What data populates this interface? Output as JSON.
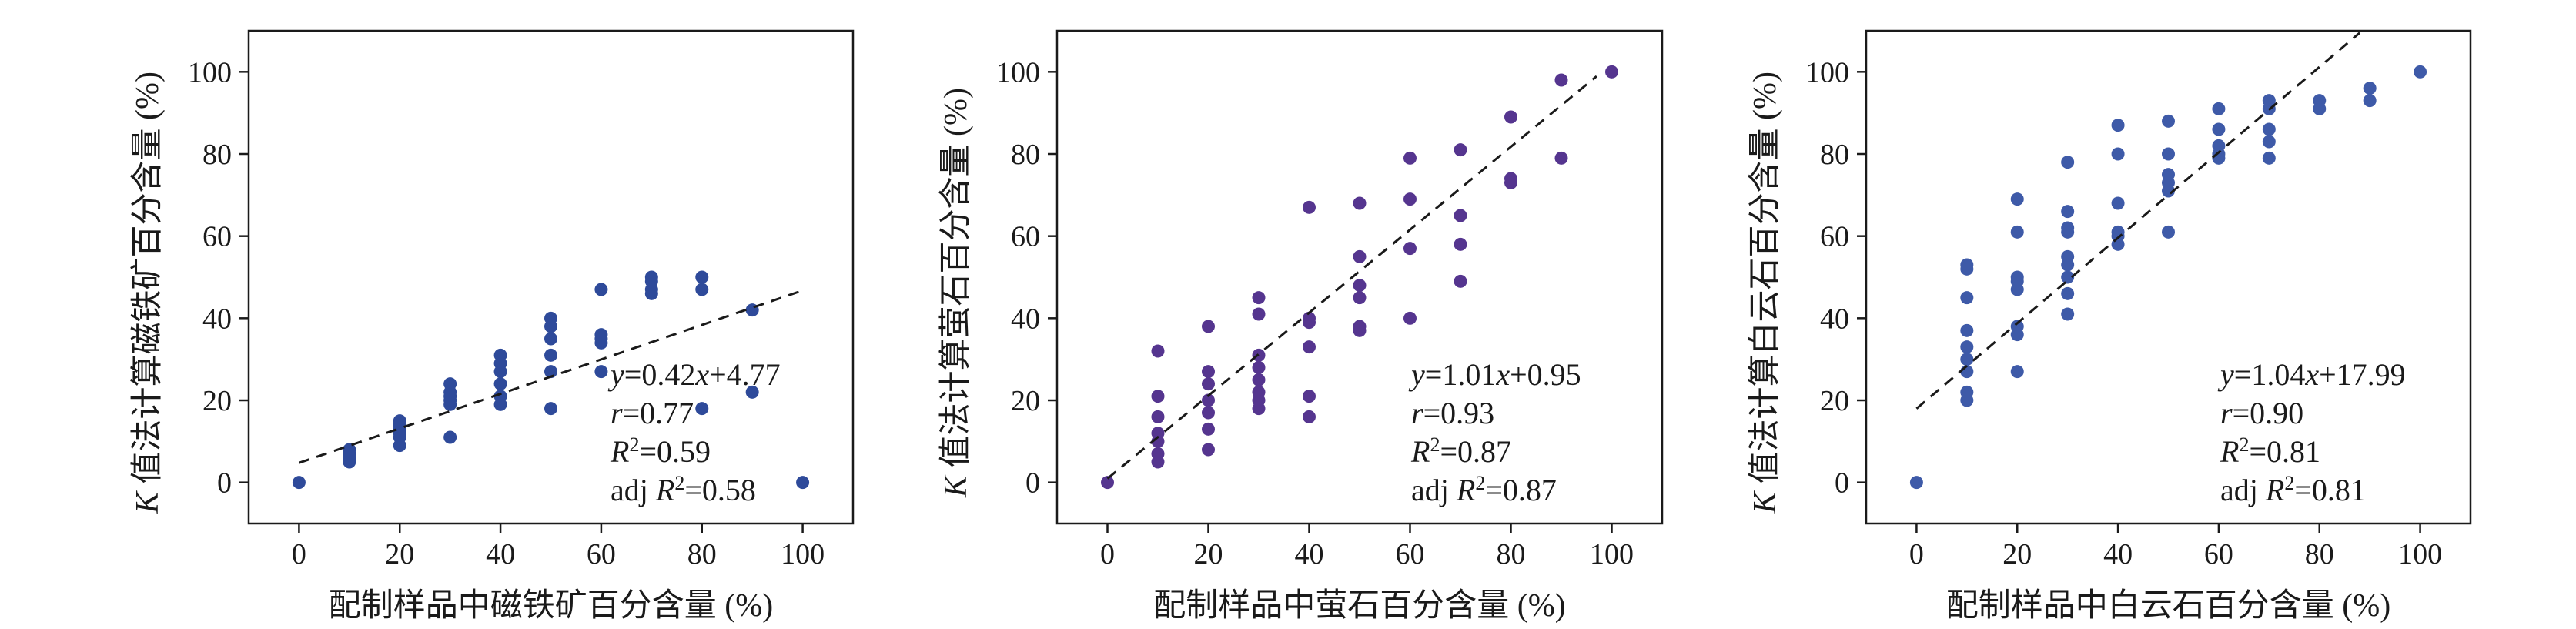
{
  "chart_data": [
    {
      "type": "scatter",
      "xlabel": "配制样品中磁铁矿百分含量 (%)",
      "ylabel": "K 值法计算磁铁矿百分含量 (%)",
      "xlim": [
        -10,
        110
      ],
      "ylim": [
        -10,
        110
      ],
      "xticks": [
        0,
        20,
        40,
        60,
        80,
        100
      ],
      "yticks": [
        0,
        20,
        40,
        60,
        80,
        100
      ],
      "point_color": "#2e4a9a",
      "fit": {
        "slope": 0.42,
        "intercept": 4.77,
        "x_range": [
          0,
          100
        ]
      },
      "annotation": [
        "y=0.42x+4.77",
        "r=0.77",
        "R²=0.59",
        "adj R²=0.58"
      ],
      "points": [
        [
          0,
          0
        ],
        [
          10,
          5
        ],
        [
          10,
          6
        ],
        [
          10,
          7
        ],
        [
          10,
          8
        ],
        [
          20,
          9
        ],
        [
          20,
          11
        ],
        [
          20,
          12
        ],
        [
          20,
          13
        ],
        [
          20,
          14
        ],
        [
          20,
          15
        ],
        [
          30,
          11
        ],
        [
          30,
          19
        ],
        [
          30,
          20
        ],
        [
          30,
          21
        ],
        [
          30,
          22
        ],
        [
          30,
          24
        ],
        [
          40,
          19
        ],
        [
          40,
          21
        ],
        [
          40,
          24
        ],
        [
          40,
          27
        ],
        [
          40,
          29
        ],
        [
          40,
          31
        ],
        [
          50,
          18
        ],
        [
          50,
          27
        ],
        [
          50,
          31
        ],
        [
          50,
          35
        ],
        [
          50,
          38
        ],
        [
          50,
          40
        ],
        [
          60,
          27
        ],
        [
          60,
          34
        ],
        [
          60,
          35
        ],
        [
          60,
          36
        ],
        [
          60,
          47
        ],
        [
          70,
          46
        ],
        [
          70,
          47
        ],
        [
          70,
          49
        ],
        [
          70,
          50
        ],
        [
          80,
          18
        ],
        [
          80,
          47
        ],
        [
          80,
          50
        ],
        [
          90,
          22
        ],
        [
          90,
          42
        ],
        [
          100,
          0
        ]
      ]
    },
    {
      "type": "scatter",
      "xlabel": "配制样品中萤石百分含量 (%)",
      "ylabel": "K 值法计算萤石百分含量 (%)",
      "xlim": [
        -10,
        110
      ],
      "ylim": [
        -10,
        110
      ],
      "xticks": [
        0,
        20,
        40,
        60,
        80,
        100
      ],
      "yticks": [
        0,
        20,
        40,
        60,
        80,
        100
      ],
      "point_color": "#55358f",
      "fit": {
        "slope": 1.01,
        "intercept": 0.95,
        "x_range": [
          0,
          97
        ]
      },
      "annotation": [
        "y=1.01x+0.95",
        "r=0.93",
        "R²=0.87",
        "adj R²=0.87"
      ],
      "points": [
        [
          0,
          0
        ],
        [
          10,
          5
        ],
        [
          10,
          7
        ],
        [
          10,
          10
        ],
        [
          10,
          12
        ],
        [
          10,
          16
        ],
        [
          10,
          21
        ],
        [
          10,
          32
        ],
        [
          20,
          8
        ],
        [
          20,
          13
        ],
        [
          20,
          17
        ],
        [
          20,
          20
        ],
        [
          20,
          24
        ],
        [
          20,
          27
        ],
        [
          20,
          38
        ],
        [
          30,
          18
        ],
        [
          30,
          20
        ],
        [
          30,
          22
        ],
        [
          30,
          25
        ],
        [
          30,
          28
        ],
        [
          30,
          31
        ],
        [
          30,
          41
        ],
        [
          30,
          45
        ],
        [
          40,
          16
        ],
        [
          40,
          21
        ],
        [
          40,
          33
        ],
        [
          40,
          39
        ],
        [
          40,
          40
        ],
        [
          40,
          67
        ],
        [
          50,
          37
        ],
        [
          50,
          38
        ],
        [
          50,
          45
        ],
        [
          50,
          48
        ],
        [
          50,
          55
        ],
        [
          50,
          68
        ],
        [
          60,
          40
        ],
        [
          60,
          57
        ],
        [
          60,
          69
        ],
        [
          60,
          79
        ],
        [
          70,
          49
        ],
        [
          70,
          58
        ],
        [
          70,
          65
        ],
        [
          70,
          81
        ],
        [
          80,
          73
        ],
        [
          80,
          74
        ],
        [
          80,
          89
        ],
        [
          90,
          79
        ],
        [
          90,
          98
        ],
        [
          100,
          100
        ]
      ]
    },
    {
      "type": "scatter",
      "xlabel": "配制样品中白云石百分含量 (%)",
      "ylabel": "K 值法计算白云石百分含量 (%)",
      "xlim": [
        -10,
        110
      ],
      "ylim": [
        -10,
        110
      ],
      "xticks": [
        0,
        20,
        40,
        60,
        80,
        100
      ],
      "yticks": [
        0,
        20,
        40,
        60,
        80,
        100
      ],
      "point_color": "#3e5aa8",
      "fit": {
        "slope": 1.04,
        "intercept": 17.99,
        "x_range": [
          0,
          88
        ]
      },
      "annotation": [
        "y=1.04x+17.99",
        "r=0.90",
        "R²=0.81",
        "adj R²=0.81"
      ],
      "points": [
        [
          0,
          0
        ],
        [
          10,
          20
        ],
        [
          10,
          22
        ],
        [
          10,
          27
        ],
        [
          10,
          30
        ],
        [
          10,
          33
        ],
        [
          10,
          37
        ],
        [
          10,
          45
        ],
        [
          10,
          52
        ],
        [
          10,
          53
        ],
        [
          20,
          27
        ],
        [
          20,
          36
        ],
        [
          20,
          38
        ],
        [
          20,
          47
        ],
        [
          20,
          49
        ],
        [
          20,
          50
        ],
        [
          20,
          61
        ],
        [
          20,
          69
        ],
        [
          30,
          41
        ],
        [
          30,
          46
        ],
        [
          30,
          50
        ],
        [
          30,
          53
        ],
        [
          30,
          55
        ],
        [
          30,
          61
        ],
        [
          30,
          62
        ],
        [
          30,
          66
        ],
        [
          30,
          78
        ],
        [
          40,
          58
        ],
        [
          40,
          60
        ],
        [
          40,
          61
        ],
        [
          40,
          68
        ],
        [
          40,
          80
        ],
        [
          40,
          87
        ],
        [
          50,
          61
        ],
        [
          50,
          71
        ],
        [
          50,
          73
        ],
        [
          50,
          75
        ],
        [
          50,
          80
        ],
        [
          50,
          88
        ],
        [
          60,
          79
        ],
        [
          60,
          80
        ],
        [
          60,
          82
        ],
        [
          60,
          86
        ],
        [
          60,
          91
        ],
        [
          70,
          79
        ],
        [
          70,
          83
        ],
        [
          70,
          86
        ],
        [
          70,
          91
        ],
        [
          70,
          93
        ],
        [
          80,
          91
        ],
        [
          80,
          93
        ],
        [
          90,
          93
        ],
        [
          90,
          96
        ],
        [
          100,
          100
        ]
      ]
    }
  ]
}
